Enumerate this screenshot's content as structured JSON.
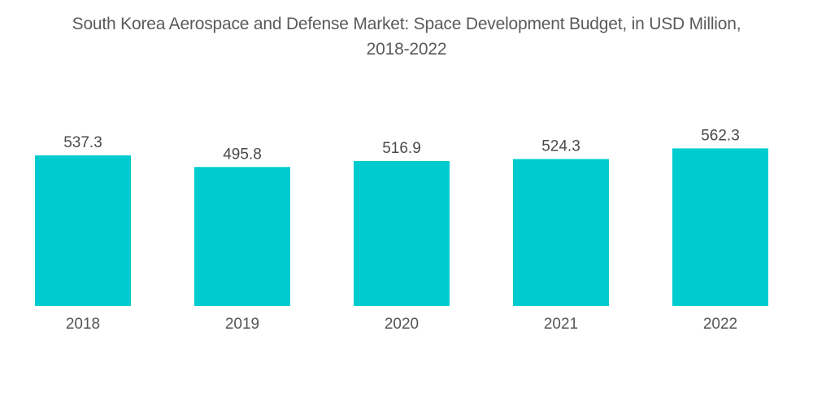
{
  "chart_data": {
    "type": "bar",
    "title": "South Korea Aerospace and Defense Market: Space Development Budget, in USD Million, 2018-2022",
    "title_lines": [
      "South Korea Aerospace and Defense Market: Space Development Budget, in USD Million,",
      "2018-2022"
    ],
    "categories": [
      "2018",
      "2019",
      "2020",
      "2021",
      "2022"
    ],
    "values": [
      537.3,
      495.8,
      516.9,
      524.3,
      562.3
    ],
    "value_labels": [
      "537.3",
      "495.8",
      "516.9",
      "524.3",
      "562.3"
    ],
    "xlabel": "",
    "ylabel": "",
    "ylim": [
      0,
      600
    ],
    "grid": false,
    "legend": "none",
    "bar_color": "#00cccf"
  }
}
